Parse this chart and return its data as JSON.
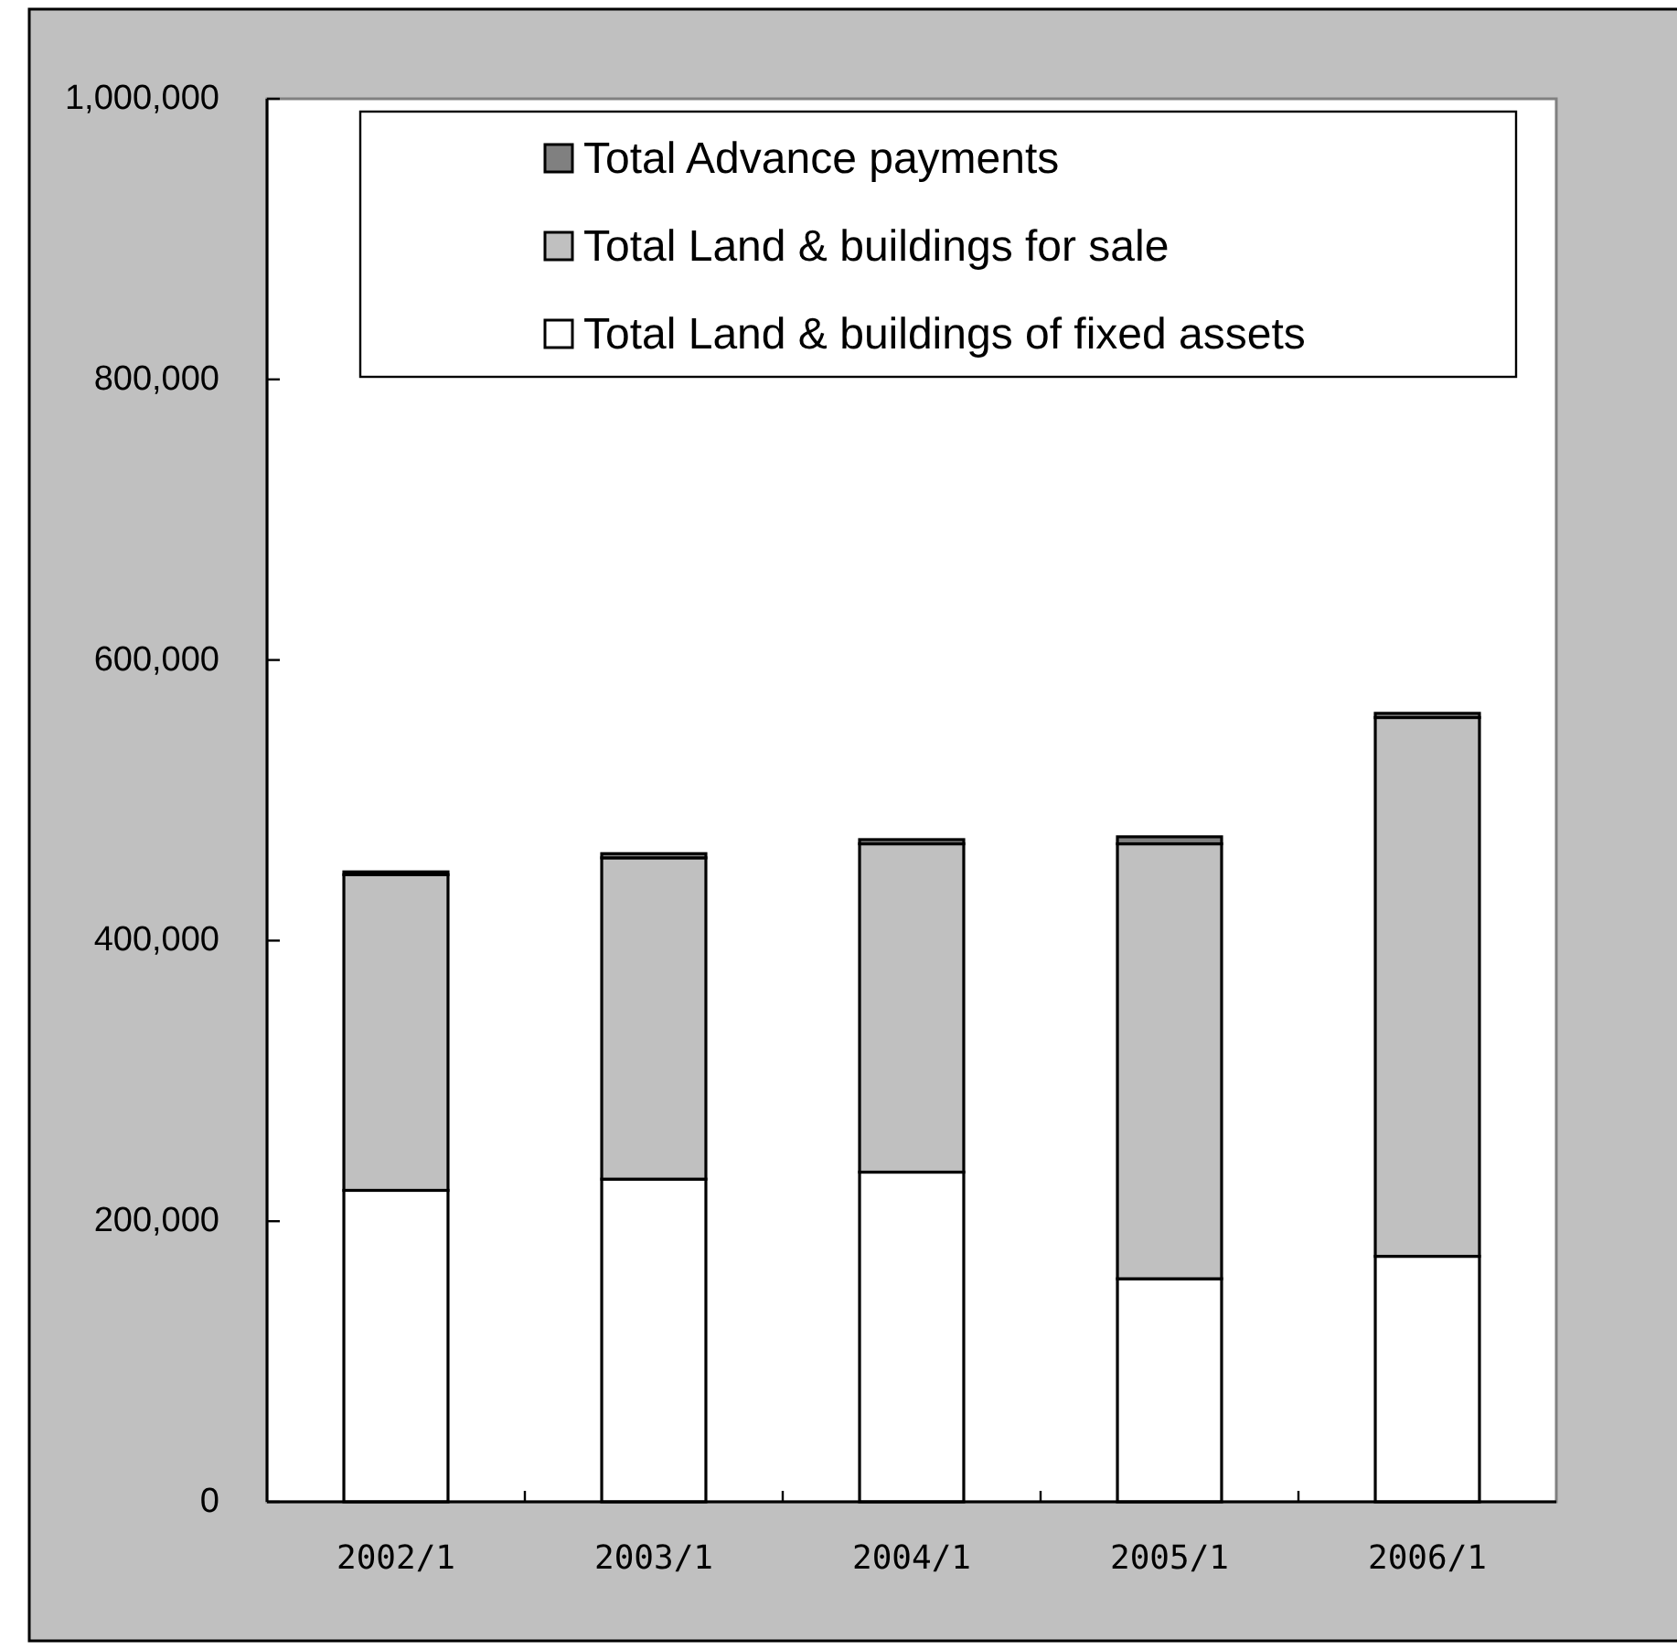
{
  "chart_data": {
    "type": "bar",
    "stacked": true,
    "categories": [
      "2002/1",
      "2003/1",
      "2004/1",
      "2005/1",
      "2006/1"
    ],
    "series": [
      {
        "name": "Total Land & buildings of fixed assets",
        "color": "#ffffff",
        "values": [
          222000,
          230000,
          235000,
          159000,
          175000
        ]
      },
      {
        "name": "Total Land & buildings for sale",
        "color": "#c0c0c0",
        "values": [
          225000,
          229000,
          234000,
          310000,
          384000
        ]
      },
      {
        "name": "Total Advance payments",
        "color": "#808080",
        "values": [
          2000,
          3000,
          3000,
          5000,
          3000
        ]
      }
    ],
    "ylim": [
      0,
      1000000
    ],
    "yticks": [
      0,
      {
        "value": 200000,
        "label": "200,000"
      },
      {
        "value": 400000,
        "label": "400,000"
      },
      {
        "value": 600000,
        "label": "600,000"
      },
      {
        "value": 800000,
        "label": "800,000"
      },
      {
        "value": 1000000,
        "label": "1,000,000"
      }
    ],
    "grid": false,
    "legend": "top"
  }
}
